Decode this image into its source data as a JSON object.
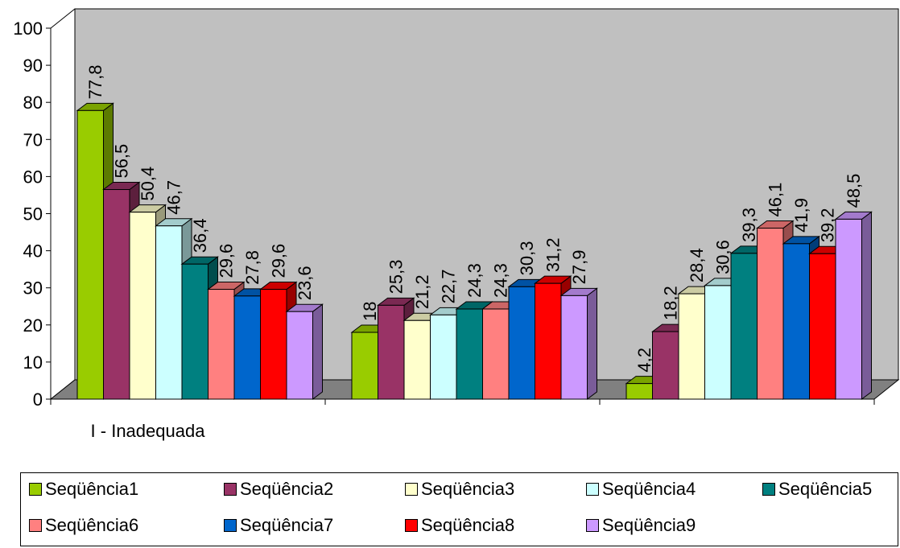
{
  "chart_data": {
    "type": "bar",
    "categories": [
      "I - Inadequada",
      "",
      ""
    ],
    "ylim": [
      0,
      100
    ],
    "yticks": [
      0,
      10,
      20,
      30,
      40,
      50,
      60,
      70,
      80,
      90,
      100
    ],
    "grid": false,
    "legend_position": "bottom",
    "series": [
      {
        "name": "Seqüência1",
        "color": "#99cc00",
        "values": [
          77.8,
          18,
          4.2
        ],
        "labels": [
          "77,8",
          "18",
          "4,2"
        ]
      },
      {
        "name": "Seqüência2",
        "color": "#993366",
        "values": [
          56.5,
          25.3,
          18.2
        ],
        "labels": [
          "56,5",
          "25,3",
          "18,2"
        ]
      },
      {
        "name": "Seqüência3",
        "color": "#ffffcc",
        "values": [
          50.4,
          21.2,
          28.4
        ],
        "labels": [
          "50,4",
          "21,2",
          "28,4"
        ]
      },
      {
        "name": "Seqüência4",
        "color": "#ccffff",
        "values": [
          46.7,
          22.7,
          30.6
        ],
        "labels": [
          "46,7",
          "22,7",
          "30,6"
        ]
      },
      {
        "name": "Seqüência5",
        "color": "#008080",
        "values": [
          36.4,
          24.3,
          39.3
        ],
        "labels": [
          "36,4",
          "24,3",
          "39,3"
        ]
      },
      {
        "name": "Seqüência6",
        "color": "#ff8080",
        "values": [
          29.6,
          24.3,
          46.1
        ],
        "labels": [
          "29,6",
          "24,3",
          "46,1"
        ]
      },
      {
        "name": "Seqüência7",
        "color": "#0066cc",
        "values": [
          27.8,
          30.3,
          41.9
        ],
        "labels": [
          "27,8",
          "30,3",
          "41,9"
        ]
      },
      {
        "name": "Seqüência8",
        "color": "#ff0000",
        "values": [
          29.6,
          31.2,
          39.2
        ],
        "labels": [
          "29,6",
          "31,2",
          "39,2"
        ]
      },
      {
        "name": "Seqüência9",
        "color": "#cc99ff",
        "values": [
          23.6,
          27.9,
          48.5
        ],
        "labels": [
          "23,6",
          "27,9",
          "48,5"
        ]
      }
    ],
    "colors": {
      "wall": "#c0c0c0",
      "floor": "#808080"
    }
  }
}
